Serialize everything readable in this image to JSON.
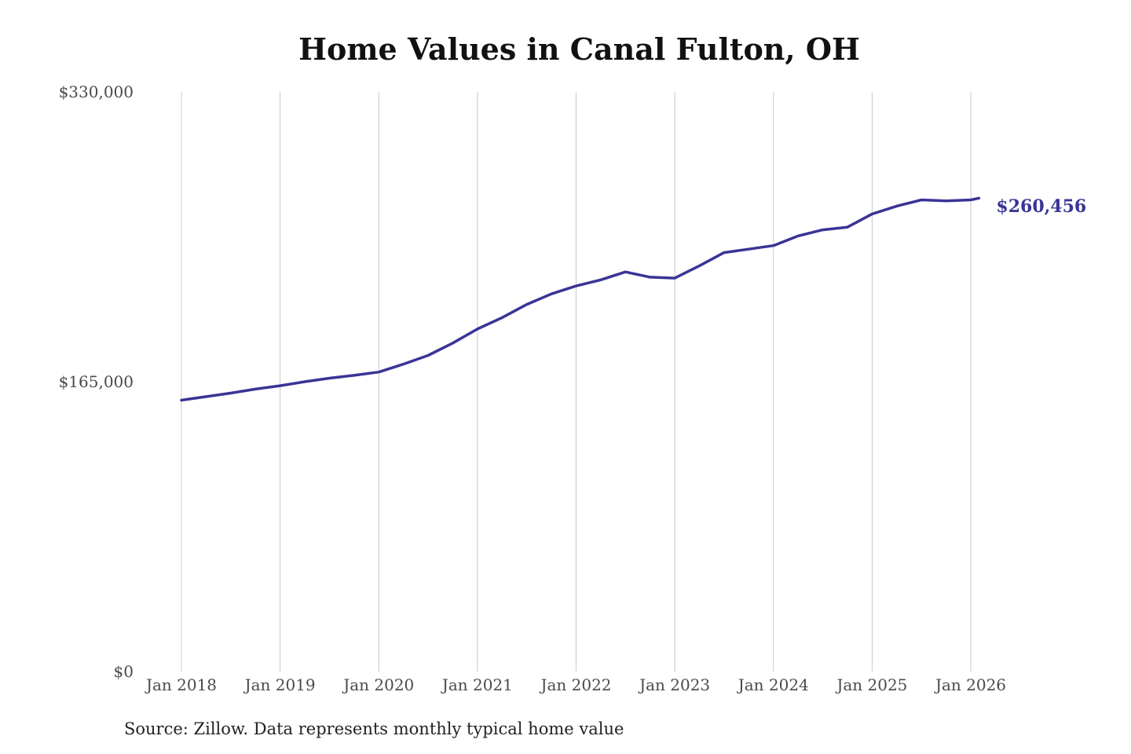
{
  "chart_data": {
    "type": "line",
    "title": "Home Values in Canal Fulton, OH",
    "source": "Source: Zillow. Data represents monthly typical home value",
    "xlabel": "",
    "ylabel": "",
    "ylim": [
      0,
      330000
    ],
    "y_ticks": [
      {
        "value": 0,
        "label": "$0"
      },
      {
        "value": 165000,
        "label": "$165,000"
      },
      {
        "value": 330000,
        "label": "$330,000"
      }
    ],
    "x_ticks": [
      {
        "value": 2018,
        "label": "Jan 2018"
      },
      {
        "value": 2019,
        "label": "Jan 2019"
      },
      {
        "value": 2020,
        "label": "Jan 2020"
      },
      {
        "value": 2021,
        "label": "Jan 2021"
      },
      {
        "value": 2022,
        "label": "Jan 2022"
      },
      {
        "value": 2023,
        "label": "Jan 2023"
      },
      {
        "value": 2024,
        "label": "Jan 2024"
      },
      {
        "value": 2025,
        "label": "Jan 2025"
      },
      {
        "value": 2026,
        "label": "Jan 2026"
      }
    ],
    "grid": "vertical",
    "end_label": "$260,456",
    "line_color": "#3a3496",
    "series": [
      {
        "x": [
          2018.0,
          2018.25,
          2018.5,
          2018.75,
          2019.0,
          2019.25,
          2019.5,
          2019.75,
          2020.0,
          2020.25,
          2020.5,
          2020.75,
          2021.0,
          2021.25,
          2021.5,
          2021.75,
          2022.0,
          2022.25,
          2022.5,
          2022.75,
          2023.0,
          2023.25,
          2023.5,
          2023.75,
          2024.0,
          2024.25,
          2024.5,
          2024.75,
          2025.0,
          2025.25,
          2025.5,
          2025.75,
          2026.0,
          2026.083
        ],
        "values": [
          154500,
          156500,
          158500,
          160800,
          162700,
          165000,
          167000,
          168600,
          170500,
          175000,
          180000,
          187000,
          195000,
          201500,
          209000,
          215000,
          219500,
          223000,
          227500,
          224500,
          224000,
          231000,
          238500,
          240500,
          242500,
          248000,
          251500,
          253000,
          260500,
          265000,
          268500,
          268000,
          268500,
          260456
        ]
      }
    ]
  }
}
